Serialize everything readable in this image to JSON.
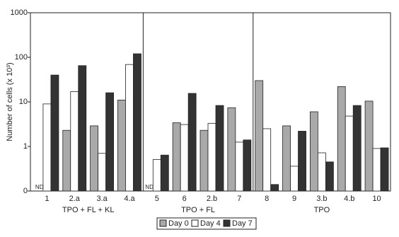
{
  "chart_data": {
    "type": "bar",
    "ylabel": "Number of cells (x 10³)",
    "categories": [
      "1",
      "2.a",
      "3.a",
      "4.a",
      "5",
      "6",
      "2.b",
      "7",
      "8",
      "9",
      "3.b",
      "4.b",
      "10"
    ],
    "group_labels": [
      "TPO + FL + KL",
      "TPO + FL",
      "TPO"
    ],
    "series": [
      {
        "name": "Day 0",
        "color": "#a9a9a9",
        "values": [
          null,
          2.3,
          2.9,
          11,
          null,
          3.4,
          2.3,
          7.4,
          30,
          2.9,
          6,
          22,
          10.4
        ],
        "value_labels": [
          "ND",
          null,
          null,
          null,
          "ND",
          null,
          null,
          null,
          null,
          null,
          null,
          null,
          null
        ]
      },
      {
        "name": "Day 4",
        "color": "#ffffff",
        "values": [
          9,
          17,
          0.7,
          69,
          0.51,
          3.1,
          3.3,
          1.25,
          2.5,
          0.36,
          0.72,
          4.8,
          0.9
        ]
      },
      {
        "name": "Day 7",
        "color": "#333333",
        "values": [
          40,
          65,
          16,
          120,
          0.64,
          15.5,
          8.3,
          1.4,
          0.14,
          2.2,
          0.45,
          8.3,
          0.93
        ]
      }
    ],
    "log_scale": true,
    "ylim": [
      0.1,
      1000
    ],
    "yticks": [
      {
        "value": 0.1,
        "label": "0"
      },
      1,
      10,
      100,
      1000
    ]
  }
}
